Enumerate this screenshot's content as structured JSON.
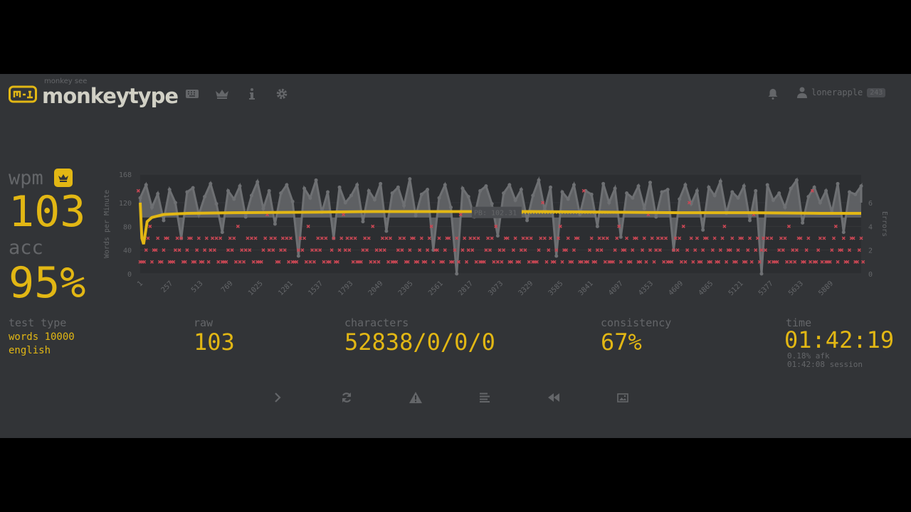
{
  "colors": {
    "bg": "#323437",
    "main": "#e2b714",
    "sub": "#646669",
    "text": "#d1d0c5",
    "error": "#ca4754"
  },
  "header": {
    "logo_sub": "monkey see",
    "logo_text": "monkeytype",
    "nav": [
      {
        "icon": "keyboard-icon"
      },
      {
        "icon": "crown-icon"
      },
      {
        "icon": "info-icon"
      },
      {
        "icon": "gear-icon"
      }
    ],
    "notifications_icon": "bell-icon",
    "user": {
      "name": "lonerapple",
      "level": "243"
    }
  },
  "stats": {
    "wpm_label": "wpm",
    "wpm": "103",
    "pb_icon": "crown-icon",
    "acc_label": "acc",
    "acc": "95%",
    "test_type_label": "test type",
    "test_type": "words 10000",
    "language": "english",
    "raw_label": "raw",
    "raw": "103",
    "characters_label": "characters",
    "characters": "52838/0/0/0",
    "consistency_label": "consistency",
    "consistency": "67%",
    "time_label": "time",
    "time": "01:42:19",
    "afk": "0.18% afk",
    "session": "01:42:08 session"
  },
  "chart_data": {
    "type": "line",
    "ylabel": "Words per Minute",
    "y2label": "Errors",
    "ylim": [
      0,
      168
    ],
    "y2lim": [
      0,
      8.4
    ],
    "yticks": [
      "0",
      "40",
      "80",
      "120",
      "168"
    ],
    "y2ticks": [
      "0",
      "2",
      "4",
      "6"
    ],
    "xlim": [
      1,
      6150
    ],
    "xticks": [
      "1",
      "257",
      "513",
      "769",
      "1025",
      "1281",
      "1537",
      "1793",
      "2049",
      "2305",
      "2561",
      "2817",
      "3073",
      "3329",
      "3585",
      "3841",
      "4097",
      "4353",
      "4609",
      "4865",
      "5121",
      "5377",
      "5633",
      "5889"
    ],
    "pb_label": "PB: 102.31",
    "pb": 102.31,
    "wpm": [
      [
        1,
        120
      ],
      [
        15,
        60
      ],
      [
        30,
        50
      ],
      [
        60,
        88
      ],
      [
        100,
        95
      ],
      [
        200,
        100
      ],
      [
        400,
        102
      ],
      [
        800,
        103
      ],
      [
        1500,
        104
      ],
      [
        2000,
        105
      ],
      [
        2817,
        105
      ],
      [
        3329,
        105
      ],
      [
        4000,
        104
      ],
      [
        4600,
        103
      ],
      [
        5200,
        103
      ],
      [
        5800,
        102
      ],
      [
        6150,
        102
      ]
    ],
    "raw": [
      128,
      150,
      112,
      135,
      90,
      142,
      120,
      60,
      138,
      145,
      100,
      130,
      152,
      118,
      70,
      140,
      126,
      148,
      96,
      132,
      155,
      110,
      140,
      84,
      136,
      150,
      122,
      30,
      144,
      128,
      158,
      104,
      138,
      60,
      146,
      120,
      132,
      150,
      88,
      140,
      125,
      152,
      72,
      136,
      146,
      115,
      160,
      98,
      134,
      142,
      40,
      128,
      150,
      112,
      0,
      144,
      130,
      96,
      140,
      148,
      118,
      64,
      136,
      150,
      124,
      142,
      90,
      132,
      158,
      108,
      146,
      30,
      138,
      126,
      150,
      100,
      140,
      134,
      80,
      152,
      120,
      144,
      62,
      136,
      128,
      148,
      110,
      154,
      96,
      138,
      142,
      40,
      126,
      150,
      118,
      140,
      74,
      146,
      132,
      156,
      102,
      138,
      128,
      148,
      90,
      140,
      0,
      150,
      124,
      136,
      112,
      144,
      158,
      86,
      130,
      146,
      120,
      140,
      104,
      152,
      70,
      138,
      134,
      148
    ],
    "errors": [
      7,
      1,
      4,
      2,
      1,
      3,
      1,
      2,
      1,
      3,
      2,
      1,
      1,
      2,
      3,
      1,
      2,
      4,
      1,
      2,
      3,
      1,
      5,
      2,
      1,
      2,
      3,
      1,
      2,
      4,
      1,
      2,
      3,
      2,
      1,
      5,
      2,
      3,
      1,
      2,
      4,
      1,
      2,
      3,
      1,
      2,
      1,
      3,
      2,
      1,
      4,
      2,
      1,
      3,
      2,
      5,
      1,
      2,
      3,
      1,
      2,
      4,
      1,
      3,
      2,
      1,
      2,
      3,
      1,
      6,
      2,
      1,
      4,
      2,
      1,
      3,
      7,
      2,
      1,
      2,
      3,
      1,
      4,
      2,
      1,
      3,
      2,
      5,
      1,
      2,
      3,
      1,
      2,
      4,
      6,
      2,
      1,
      3,
      2,
      1,
      4,
      2,
      1,
      3,
      2,
      5,
      1,
      2,
      3,
      1,
      2,
      4,
      1,
      3,
      2,
      7,
      2,
      3,
      1,
      4,
      2,
      1,
      3,
      2
    ]
  },
  "actions": [
    {
      "name": "next-test-button",
      "icon": "chevron-right-icon"
    },
    {
      "name": "restart-test-button",
      "icon": "refresh-icon"
    },
    {
      "name": "report-button",
      "icon": "warning-icon"
    },
    {
      "name": "word-history-button",
      "icon": "list-icon"
    },
    {
      "name": "replay-button",
      "icon": "rewind-icon"
    },
    {
      "name": "screenshot-button",
      "icon": "image-icon"
    }
  ]
}
